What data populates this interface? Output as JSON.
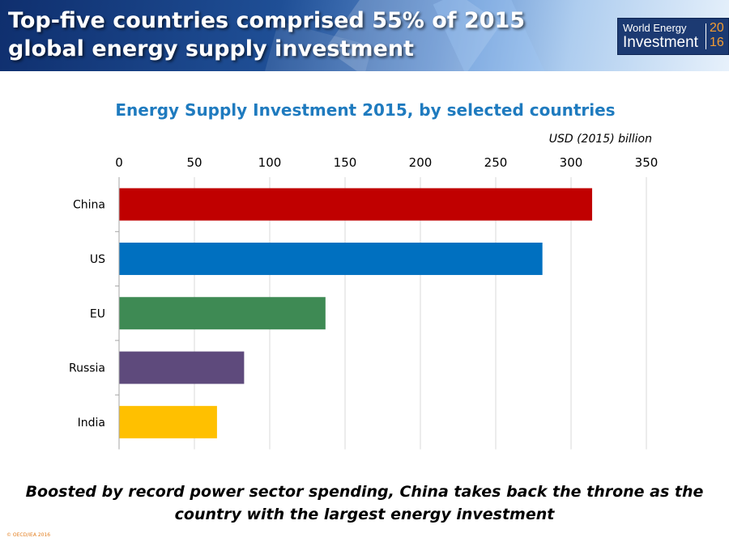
{
  "header": {
    "title": "Top-five countries comprised 55% of 2015 global energy supply investment"
  },
  "logo": {
    "line1": "World Energy",
    "line2": "Investment",
    "year_top": "20",
    "year_bottom": "16",
    "text_color": "#ffffff",
    "year_color": "#f39c32"
  },
  "chart_data": {
    "type": "bar",
    "orientation": "horizontal",
    "title": "Energy Supply Investment 2015, by selected countries",
    "unit_label": "USD (2015) billion",
    "categories": [
      "China",
      "US",
      "EU",
      "Russia",
      "India"
    ],
    "values": [
      314,
      281,
      137,
      83,
      65
    ],
    "colors": [
      "#c00000",
      "#0070c0",
      "#3e8a54",
      "#5e4a7c",
      "#ffc000"
    ],
    "xlim": [
      0,
      350
    ],
    "xticks": [
      0,
      50,
      100,
      150,
      200,
      250,
      300,
      350
    ],
    "tick_labels": [
      "0",
      "50",
      "100",
      "150",
      "200",
      "250",
      "300",
      "350"
    ],
    "axis_position": "top",
    "grid": true
  },
  "caption": "Boosted by record power sector spending, China takes back the throne as the country with the largest energy investment",
  "copyright": "© OECD/IEA 2016"
}
